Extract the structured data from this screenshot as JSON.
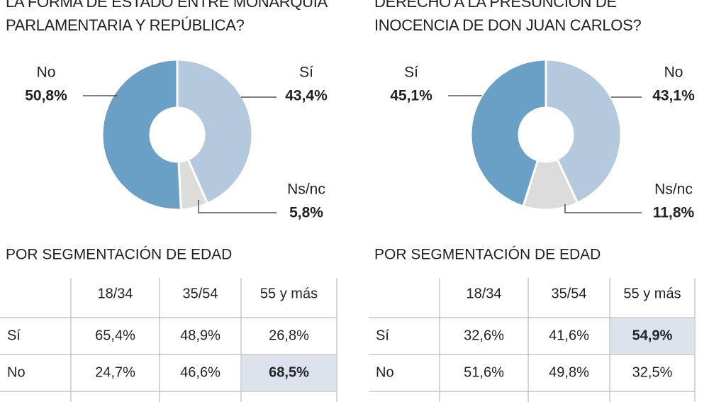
{
  "chart_data": [
    {
      "type": "pie",
      "title_lines": [
        "LA FORMA DE ESTADO ENTRE MONARQUÍA",
        "PARLAMENTARIA Y REPÚBLICA?"
      ],
      "categories": [
        "Sí",
        "Ns/nc",
        "No"
      ],
      "values": [
        43.4,
        5.8,
        50.8
      ],
      "value_labels": [
        "43,4%",
        "5,8%",
        "50,8%"
      ],
      "colors": [
        "#b4c8de",
        "#dcdcdc",
        "#6a9fc6"
      ]
    },
    {
      "type": "pie",
      "title_lines": [
        "DERECHO A LA PRESUNCIÓN DE",
        "INOCENCIA DE DON JUAN CARLOS?"
      ],
      "categories": [
        "No",
        "Ns/nc",
        "Sí"
      ],
      "values": [
        43.1,
        11.8,
        45.1
      ],
      "value_labels": [
        "43,1%",
        "11,8%",
        "45,1%"
      ],
      "colors": [
        "#b4c8de",
        "#dcdcdc",
        "#6a9fc6"
      ]
    }
  ],
  "tables": [
    {
      "heading": "POR SEGMENTACIÓN DE EDAD",
      "columns": [
        "18/34",
        "35/54",
        "55 y más"
      ],
      "rows": [
        {
          "label": "Sí",
          "cells": [
            "65,4%",
            "48,9%",
            "26,8%"
          ]
        },
        {
          "label": "No",
          "cells": [
            "24,7%",
            "46,6%",
            "68,5%"
          ]
        }
      ],
      "highlight": [
        1,
        2
      ]
    },
    {
      "heading": "POR SEGMENTACIÓN DE EDAD",
      "columns": [
        "18/34",
        "35/54",
        "55 y más"
      ],
      "rows": [
        {
          "label": "Sí",
          "cells": [
            "32,6%",
            "41,6%",
            "54,9%"
          ]
        },
        {
          "label": "No",
          "cells": [
            "51,6%",
            "49,8%",
            "32,5%"
          ]
        }
      ],
      "highlight": [
        0,
        2
      ]
    }
  ]
}
